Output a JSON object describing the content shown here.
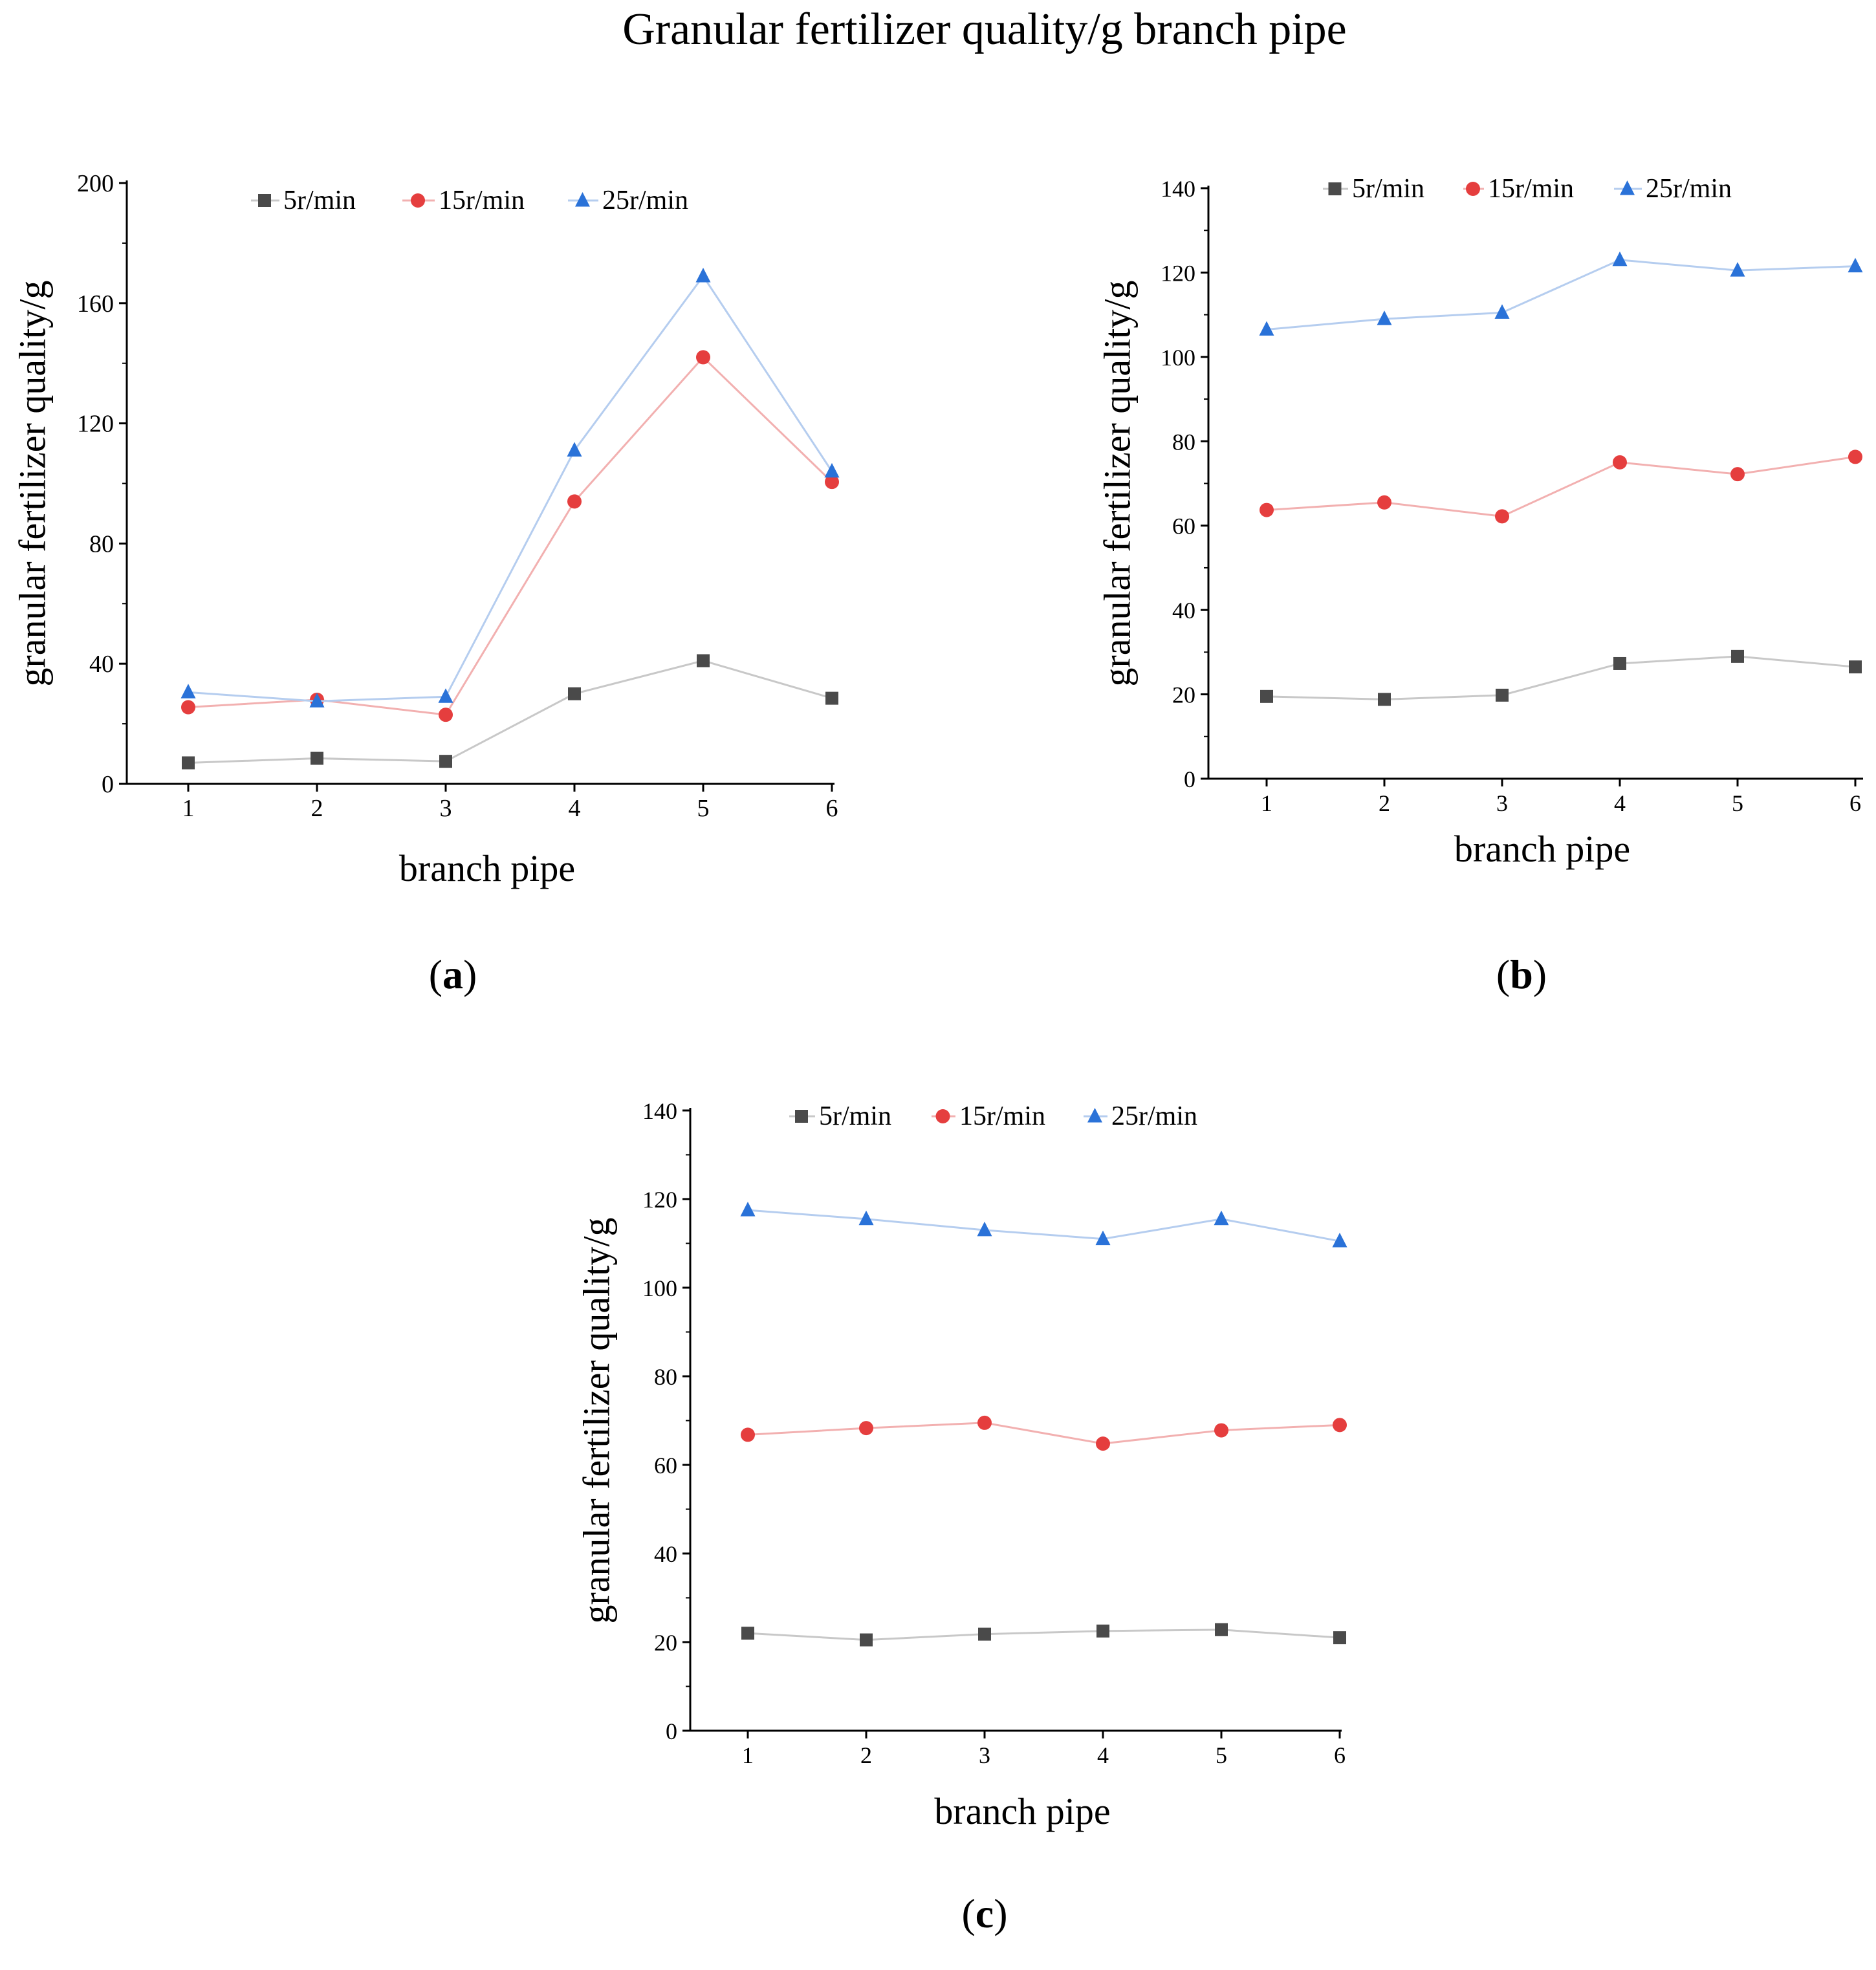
{
  "figure": {
    "title": "Granular fertilizer quality/g branch pipe"
  },
  "colors": {
    "s5": "#4a4a4a",
    "s15": "#e53e3e",
    "s25": "#2a72d8",
    "s5_line": "#c8c8c8",
    "s15_line": "#f2b0b0",
    "s25_line": "#b5cdef",
    "axis": "#000000"
  },
  "chart_data": [
    {
      "panel": "a",
      "caption": "(a)",
      "type": "line",
      "xlabel": "branch pipe",
      "ylabel": "granular fertilizer quality/g",
      "categories": [
        "1",
        "2",
        "3",
        "4",
        "5",
        "6"
      ],
      "ylim": [
        0,
        200
      ],
      "yticks": [
        0,
        40,
        80,
        120,
        160,
        200
      ],
      "legend_position": "top",
      "series": [
        {
          "name": "5r/min",
          "marker": "square",
          "values": [
            7,
            8.5,
            7.5,
            30,
            41,
            28.5
          ]
        },
        {
          "name": "15r/min",
          "marker": "circle",
          "values": [
            25.5,
            28,
            23,
            94,
            142,
            100.5
          ]
        },
        {
          "name": "25r/min",
          "marker": "triangle",
          "values": [
            30.5,
            27.5,
            29,
            111,
            169,
            104
          ]
        }
      ]
    },
    {
      "panel": "b",
      "caption": "(b)",
      "type": "line",
      "xlabel": "branch pipe",
      "ylabel": "granular fertilizer quality/g",
      "categories": [
        "1",
        "2",
        "3",
        "4",
        "5",
        "6"
      ],
      "ylim": [
        0,
        140
      ],
      "yticks": [
        0,
        20,
        40,
        60,
        80,
        100,
        120,
        140
      ],
      "legend_position": "top",
      "series": [
        {
          "name": "5r/min",
          "marker": "square",
          "values": [
            19.5,
            18.8,
            19.8,
            27.3,
            29,
            26.5
          ]
        },
        {
          "name": "15r/min",
          "marker": "circle",
          "values": [
            63.7,
            65.5,
            62.2,
            75,
            72.2,
            76.3
          ]
        },
        {
          "name": "25r/min",
          "marker": "triangle",
          "values": [
            106.5,
            109,
            110.5,
            123,
            120.5,
            121.5
          ]
        }
      ]
    },
    {
      "panel": "c",
      "caption": "(c)",
      "type": "line",
      "xlabel": "branch pipe",
      "ylabel": "granular fertilizer quality/g",
      "categories": [
        "1",
        "2",
        "3",
        "4",
        "5",
        "6"
      ],
      "ylim": [
        0,
        140
      ],
      "yticks": [
        0,
        20,
        40,
        60,
        80,
        100,
        120,
        140
      ],
      "legend_position": "top",
      "series": [
        {
          "name": "5r/min",
          "marker": "square",
          "values": [
            22,
            20.5,
            21.8,
            22.5,
            22.8,
            21
          ]
        },
        {
          "name": "15r/min",
          "marker": "circle",
          "values": [
            66.8,
            68.3,
            69.5,
            64.8,
            67.8,
            69
          ]
        },
        {
          "name": "25r/min",
          "marker": "triangle",
          "values": [
            117.5,
            115.5,
            113,
            111,
            115.5,
            110.5
          ]
        }
      ]
    }
  ]
}
